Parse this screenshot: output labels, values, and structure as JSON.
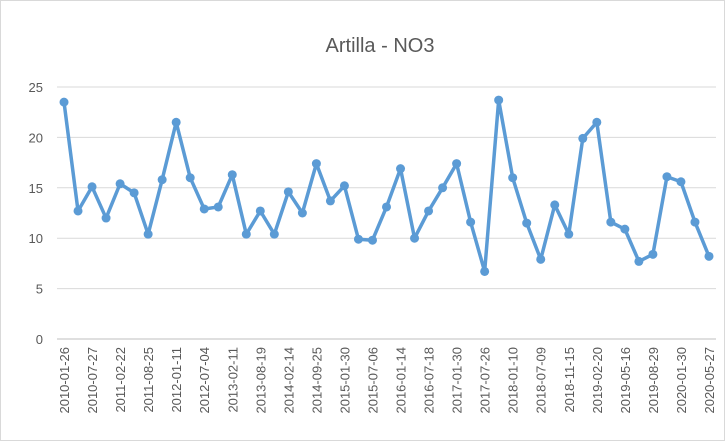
{
  "chart_data": {
    "type": "line",
    "title": "Artilla - NO3",
    "categories": [
      "2010-01-26",
      null,
      "2010-07-27",
      null,
      "2011-02-22",
      null,
      "2011-08-25",
      null,
      "2012-01-11",
      null,
      "2012-07-04",
      null,
      "2013-02-11",
      null,
      "2013-08-19",
      null,
      "2014-02-14",
      null,
      "2014-09-25",
      null,
      "2015-01-30",
      null,
      "2015-07-06",
      null,
      "2016-01-14",
      null,
      "2016-07-18",
      null,
      "2017-01-30",
      null,
      "2017-07-26",
      null,
      "2018-01-10",
      null,
      "2018-07-09",
      null,
      "2018-11-15",
      null,
      "2019-02-20",
      null,
      "2019-05-16",
      null,
      "2019-08-29",
      null,
      "2020-01-30",
      null,
      "2020-05-27"
    ],
    "series": [
      {
        "name": "NO3",
        "color": "#5b9bd5",
        "values": [
          23.5,
          12.7,
          15.1,
          12.0,
          15.4,
          14.5,
          10.4,
          15.8,
          21.5,
          16.0,
          12.9,
          13.1,
          16.3,
          10.4,
          12.7,
          10.4,
          14.6,
          12.5,
          17.4,
          13.7,
          15.2,
          9.9,
          9.8,
          13.1,
          16.9,
          10.0,
          12.7,
          15.0,
          17.4,
          11.6,
          6.7,
          23.7,
          16.0,
          11.5,
          7.9,
          13.3,
          10.4,
          19.9,
          21.5,
          11.6,
          10.9,
          7.7,
          8.4,
          16.1,
          15.6,
          11.6,
          8.2
        ]
      }
    ],
    "ylim": [
      0,
      25
    ],
    "yticks": [
      0,
      5,
      10,
      15,
      20,
      25
    ],
    "grid": true
  }
}
